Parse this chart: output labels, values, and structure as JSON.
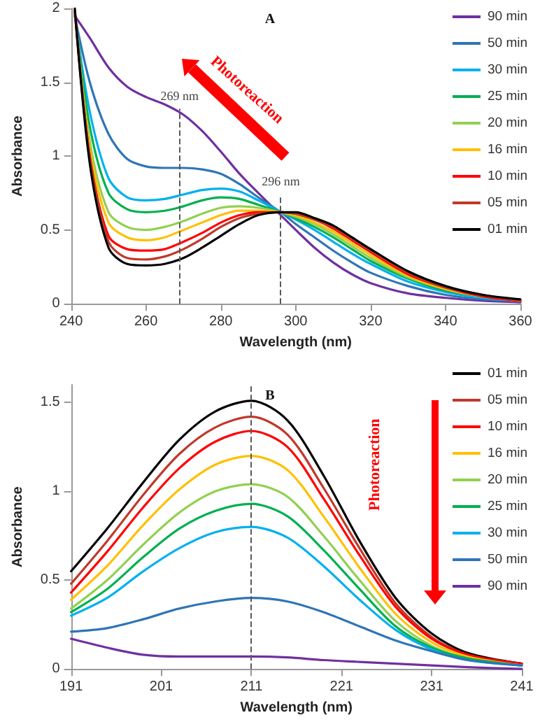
{
  "chart_data": [
    {
      "type": "line",
      "title": "A",
      "xlabel": "Wavelength (nm)",
      "ylabel": "Absorbance",
      "xlim": [
        240,
        360
      ],
      "xticks": [
        240,
        260,
        280,
        300,
        320,
        340,
        360
      ],
      "ylim": [
        0,
        2
      ],
      "yticks": [
        0,
        0.5,
        1,
        1.5,
        2
      ],
      "grid": false,
      "legend": "top right",
      "marker": "none",
      "line_style": "solid",
      "x": [
        241,
        245,
        250,
        255,
        260,
        265,
        270,
        275,
        280,
        285,
        290,
        296,
        300,
        305,
        310,
        315,
        320,
        330,
        340,
        350,
        360
      ],
      "series": [
        {
          "name": "90 min",
          "color": "#7030a0",
          "values": [
            1.95,
            1.8,
            1.6,
            1.47,
            1.4,
            1.35,
            1.28,
            1.17,
            1.03,
            0.88,
            0.75,
            0.6,
            0.5,
            0.38,
            0.28,
            0.2,
            0.14,
            0.07,
            0.04,
            0.02,
            0.01
          ]
        },
        {
          "name": "50 min",
          "color": "#2e75b6",
          "values": [
            1.95,
            1.5,
            1.15,
            0.98,
            0.93,
            0.92,
            0.92,
            0.91,
            0.88,
            0.81,
            0.72,
            0.62,
            0.54,
            0.45,
            0.36,
            0.28,
            0.21,
            0.12,
            0.06,
            0.03,
            0.02
          ]
        },
        {
          "name": "30 min",
          "color": "#00b0f0",
          "values": [
            1.95,
            1.3,
            0.85,
            0.72,
            0.7,
            0.71,
            0.74,
            0.77,
            0.78,
            0.76,
            0.7,
            0.62,
            0.57,
            0.5,
            0.42,
            0.34,
            0.27,
            0.15,
            0.08,
            0.04,
            0.02
          ]
        },
        {
          "name": "25 min",
          "color": "#00b050",
          "values": [
            1.97,
            1.2,
            0.75,
            0.64,
            0.62,
            0.63,
            0.66,
            0.7,
            0.72,
            0.71,
            0.67,
            0.62,
            0.58,
            0.52,
            0.45,
            0.37,
            0.29,
            0.17,
            0.09,
            0.05,
            0.02
          ]
        },
        {
          "name": "20 min",
          "color": "#92d050",
          "values": [
            1.97,
            1.1,
            0.62,
            0.52,
            0.5,
            0.52,
            0.56,
            0.61,
            0.65,
            0.66,
            0.65,
            0.62,
            0.59,
            0.54,
            0.47,
            0.39,
            0.31,
            0.18,
            0.1,
            0.05,
            0.02
          ]
        },
        {
          "name": "16 min",
          "color": "#ffc000",
          "values": [
            1.98,
            1.05,
            0.55,
            0.45,
            0.43,
            0.45,
            0.5,
            0.55,
            0.6,
            0.63,
            0.63,
            0.62,
            0.6,
            0.55,
            0.49,
            0.41,
            0.33,
            0.19,
            0.1,
            0.05,
            0.02
          ]
        },
        {
          "name": "10 min",
          "color": "#ff0000",
          "values": [
            1.98,
            1.0,
            0.46,
            0.37,
            0.36,
            0.37,
            0.42,
            0.48,
            0.55,
            0.6,
            0.62,
            0.62,
            0.61,
            0.57,
            0.51,
            0.43,
            0.35,
            0.2,
            0.11,
            0.05,
            0.02
          ]
        },
        {
          "name": "05 min",
          "color": "#c0392b",
          "values": [
            1.99,
            1.0,
            0.42,
            0.31,
            0.3,
            0.32,
            0.37,
            0.44,
            0.52,
            0.58,
            0.61,
            0.62,
            0.61,
            0.57,
            0.52,
            0.44,
            0.36,
            0.21,
            0.11,
            0.06,
            0.02
          ]
        },
        {
          "name": "01 min",
          "color": "#000000",
          "values": [
            2.0,
            0.95,
            0.38,
            0.27,
            0.26,
            0.27,
            0.31,
            0.38,
            0.46,
            0.54,
            0.6,
            0.62,
            0.62,
            0.58,
            0.53,
            0.45,
            0.37,
            0.22,
            0.12,
            0.06,
            0.03
          ]
        }
      ],
      "ref_lines": [
        {
          "axis": "x",
          "value": 269,
          "label": "269 nm",
          "color": "#595959",
          "line_style": "dashed"
        },
        {
          "axis": "x",
          "value": 296,
          "label": "296 nm",
          "color": "#595959",
          "line_style": "dashed"
        }
      ],
      "annotations": [
        "Photoreaction"
      ]
    },
    {
      "type": "line",
      "title": "B",
      "xlabel": "Wavelength (nm)",
      "ylabel": "Absorbance",
      "xlim": [
        191,
        241
      ],
      "xticks": [
        191,
        201,
        211,
        221,
        231,
        241
      ],
      "ylim": [
        0,
        1.6
      ],
      "yticks": [
        0,
        0.5,
        1,
        1.5
      ],
      "grid": false,
      "legend": "top right",
      "marker": "none",
      "line_style": "solid",
      "x": [
        191,
        195,
        199,
        203,
        207,
        211,
        215,
        219,
        223,
        227,
        231,
        235,
        241
      ],
      "series": [
        {
          "name": "01 min",
          "color": "#000000",
          "values": [
            0.55,
            0.79,
            1.05,
            1.29,
            1.45,
            1.51,
            1.4,
            1.09,
            0.72,
            0.4,
            0.2,
            0.09,
            0.03
          ]
        },
        {
          "name": "05 min",
          "color": "#c0392b",
          "values": [
            0.48,
            0.72,
            0.98,
            1.21,
            1.36,
            1.42,
            1.32,
            1.02,
            0.68,
            0.37,
            0.18,
            0.08,
            0.03
          ]
        },
        {
          "name": "10 min",
          "color": "#ff0000",
          "values": [
            0.43,
            0.66,
            0.91,
            1.13,
            1.28,
            1.34,
            1.25,
            0.96,
            0.64,
            0.35,
            0.17,
            0.08,
            0.03
          ]
        },
        {
          "name": "16 min",
          "color": "#ffc000",
          "values": [
            0.39,
            0.58,
            0.81,
            1.01,
            1.15,
            1.2,
            1.12,
            0.86,
            0.57,
            0.31,
            0.15,
            0.07,
            0.02
          ]
        },
        {
          "name": "20 min",
          "color": "#92d050",
          "values": [
            0.34,
            0.5,
            0.7,
            0.88,
            1.0,
            1.04,
            0.97,
            0.75,
            0.5,
            0.27,
            0.13,
            0.06,
            0.02
          ]
        },
        {
          "name": "25 min",
          "color": "#00b050",
          "values": [
            0.32,
            0.45,
            0.63,
            0.79,
            0.89,
            0.93,
            0.86,
            0.67,
            0.45,
            0.24,
            0.12,
            0.06,
            0.02
          ]
        },
        {
          "name": "30 min",
          "color": "#00b0f0",
          "values": [
            0.3,
            0.4,
            0.55,
            0.68,
            0.77,
            0.8,
            0.74,
            0.58,
            0.39,
            0.22,
            0.11,
            0.05,
            0.02
          ]
        },
        {
          "name": "50 min",
          "color": "#2e75b6",
          "values": [
            0.21,
            0.23,
            0.28,
            0.34,
            0.38,
            0.4,
            0.38,
            0.32,
            0.24,
            0.16,
            0.1,
            0.05,
            0.02
          ]
        },
        {
          "name": "90 min",
          "color": "#7030a0",
          "values": [
            0.17,
            0.12,
            0.08,
            0.07,
            0.07,
            0.07,
            0.065,
            0.05,
            0.04,
            0.03,
            0.02,
            0.01,
            0
          ]
        }
      ],
      "ref_lines": [
        {
          "axis": "x",
          "value": 211,
          "label": null,
          "color": "#595959",
          "line_style": "dashed"
        }
      ],
      "annotations": [
        "Photoreaction"
      ]
    }
  ]
}
